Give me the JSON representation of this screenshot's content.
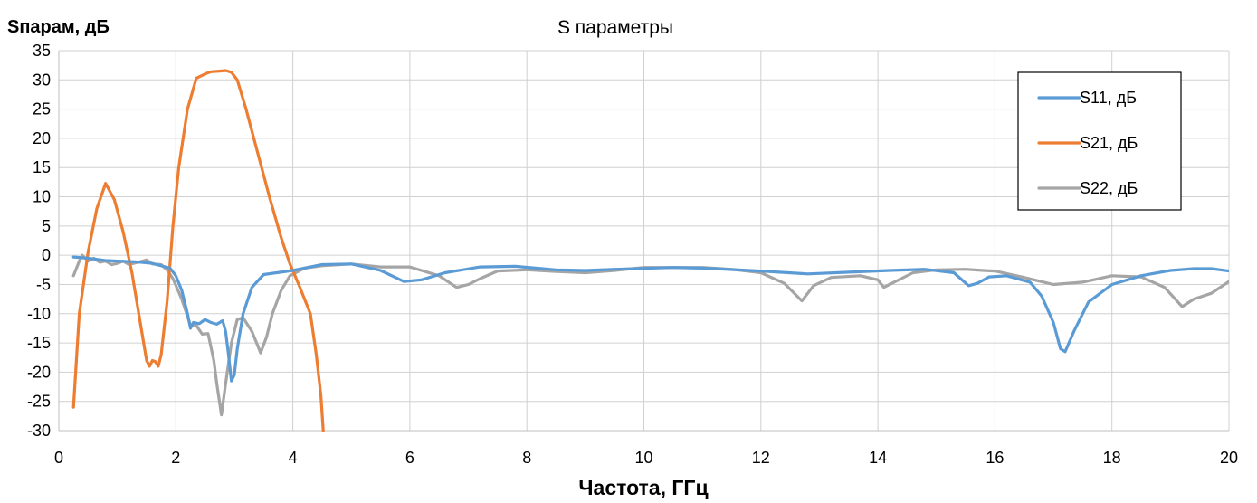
{
  "chart_data": {
    "type": "line",
    "title": "S параметры",
    "xlabel": "Частота, ГГц",
    "ylabel": "Sпарам, дБ",
    "xlim": [
      0,
      20
    ],
    "ylim": [
      -30,
      35
    ],
    "grid": true,
    "legend_position": "top-right",
    "x_ticks": [
      "0",
      "2",
      "4",
      "6",
      "8",
      "10",
      "12",
      "14",
      "16",
      "18",
      "20"
    ],
    "y_ticks": [
      "35",
      "30",
      "25",
      "20",
      "15",
      "10",
      "5",
      "0",
      "-5",
      "-10",
      "-15",
      "-20",
      "-25",
      "-30"
    ],
    "series": [
      {
        "name": "S11, дБ",
        "color": "#5b9bd5",
        "points": [
          [
            0.25,
            -0.3
          ],
          [
            0.5,
            -0.5
          ],
          [
            0.8,
            -0.9
          ],
          [
            1.0,
            -1.0
          ],
          [
            1.3,
            -1.1
          ],
          [
            1.6,
            -1.4
          ],
          [
            1.9,
            -2.2
          ],
          [
            2.0,
            -3.5
          ],
          [
            2.1,
            -6.0
          ],
          [
            2.2,
            -10.0
          ],
          [
            2.25,
            -12.5
          ],
          [
            2.3,
            -11.5
          ],
          [
            2.4,
            -11.7
          ],
          [
            2.5,
            -11.0
          ],
          [
            2.6,
            -11.5
          ],
          [
            2.7,
            -11.8
          ],
          [
            2.8,
            -11.2
          ],
          [
            2.85,
            -13.0
          ],
          [
            2.9,
            -17.0
          ],
          [
            2.95,
            -21.5
          ],
          [
            3.0,
            -20.5
          ],
          [
            3.05,
            -16.0
          ],
          [
            3.15,
            -10.0
          ],
          [
            3.3,
            -5.5
          ],
          [
            3.5,
            -3.3
          ],
          [
            4.0,
            -2.6
          ],
          [
            4.5,
            -1.6
          ],
          [
            5.0,
            -1.5
          ],
          [
            5.5,
            -2.6
          ],
          [
            5.9,
            -4.5
          ],
          [
            6.2,
            -4.2
          ],
          [
            6.6,
            -3.0
          ],
          [
            7.2,
            -2.0
          ],
          [
            7.8,
            -1.9
          ],
          [
            8.5,
            -2.5
          ],
          [
            9.0,
            -2.6
          ],
          [
            9.5,
            -2.4
          ],
          [
            10.5,
            -2.1
          ],
          [
            11.0,
            -2.2
          ],
          [
            12.0,
            -2.7
          ],
          [
            12.8,
            -3.2
          ],
          [
            13.5,
            -2.9
          ],
          [
            14.2,
            -2.6
          ],
          [
            14.8,
            -2.4
          ],
          [
            15.3,
            -3.0
          ],
          [
            15.55,
            -5.2
          ],
          [
            15.7,
            -4.8
          ],
          [
            15.9,
            -3.7
          ],
          [
            16.2,
            -3.5
          ],
          [
            16.6,
            -4.6
          ],
          [
            16.8,
            -7.0
          ],
          [
            17.0,
            -11.5
          ],
          [
            17.12,
            -16.0
          ],
          [
            17.2,
            -16.5
          ],
          [
            17.35,
            -13.0
          ],
          [
            17.6,
            -8.0
          ],
          [
            18.0,
            -5.0
          ],
          [
            18.5,
            -3.5
          ],
          [
            19.0,
            -2.6
          ],
          [
            19.4,
            -2.3
          ],
          [
            19.7,
            -2.3
          ],
          [
            20.0,
            -2.7
          ]
        ]
      },
      {
        "name": "S21, дБ",
        "color": "#ed7d31",
        "points": [
          [
            0.25,
            -26.0
          ],
          [
            0.35,
            -10.0
          ],
          [
            0.5,
            0.5
          ],
          [
            0.65,
            8.0
          ],
          [
            0.8,
            12.3
          ],
          [
            0.95,
            9.5
          ],
          [
            1.1,
            4.0
          ],
          [
            1.25,
            -3.0
          ],
          [
            1.4,
            -12.0
          ],
          [
            1.5,
            -18.0
          ],
          [
            1.55,
            -19.0
          ],
          [
            1.6,
            -18.0
          ],
          [
            1.65,
            -18.2
          ],
          [
            1.7,
            -19.0
          ],
          [
            1.75,
            -17.0
          ],
          [
            1.85,
            -8.0
          ],
          [
            1.95,
            5.0
          ],
          [
            2.05,
            15.0
          ],
          [
            2.2,
            25.0
          ],
          [
            2.35,
            30.3
          ],
          [
            2.5,
            31.0
          ],
          [
            2.6,
            31.4
          ],
          [
            2.75,
            31.5
          ],
          [
            2.85,
            31.6
          ],
          [
            2.95,
            31.3
          ],
          [
            3.05,
            30.0
          ],
          [
            3.2,
            25.0
          ],
          [
            3.4,
            17.5
          ],
          [
            3.6,
            10.0
          ],
          [
            3.8,
            3.0
          ],
          [
            3.95,
            -1.5
          ],
          [
            4.1,
            -5.0
          ],
          [
            4.3,
            -10.0
          ],
          [
            4.4,
            -17.0
          ],
          [
            4.48,
            -24.0
          ],
          [
            4.52,
            -30.0
          ]
        ]
      },
      {
        "name": "S22, дБ",
        "color": "#a5a5a5",
        "points": [
          [
            0.25,
            -3.5
          ],
          [
            0.35,
            -1.0
          ],
          [
            0.4,
            0.0
          ],
          [
            0.5,
            -1.0
          ],
          [
            0.6,
            -0.5
          ],
          [
            0.7,
            -1.2
          ],
          [
            0.8,
            -1.0
          ],
          [
            0.9,
            -1.6
          ],
          [
            1.0,
            -1.4
          ],
          [
            1.1,
            -1.0
          ],
          [
            1.2,
            -1.6
          ],
          [
            1.35,
            -1.2
          ],
          [
            1.5,
            -0.8
          ],
          [
            1.6,
            -1.5
          ],
          [
            1.75,
            -1.6
          ],
          [
            1.85,
            -2.5
          ],
          [
            1.95,
            -4.0
          ],
          [
            2.1,
            -7.5
          ],
          [
            2.25,
            -12.0
          ],
          [
            2.35,
            -12.0
          ],
          [
            2.45,
            -13.5
          ],
          [
            2.55,
            -13.4
          ],
          [
            2.65,
            -18.0
          ],
          [
            2.7,
            -22.0
          ],
          [
            2.78,
            -27.3
          ],
          [
            2.85,
            -22.0
          ],
          [
            2.95,
            -15.0
          ],
          [
            3.05,
            -11.0
          ],
          [
            3.15,
            -10.7
          ],
          [
            3.3,
            -13.0
          ],
          [
            3.45,
            -16.7
          ],
          [
            3.55,
            -14.0
          ],
          [
            3.65,
            -10.0
          ],
          [
            3.8,
            -6.0
          ],
          [
            3.95,
            -3.5
          ],
          [
            4.2,
            -2.2
          ],
          [
            4.5,
            -1.8
          ],
          [
            5.0,
            -1.5
          ],
          [
            5.5,
            -2.0
          ],
          [
            6.0,
            -2.0
          ],
          [
            6.5,
            -3.5
          ],
          [
            6.8,
            -5.5
          ],
          [
            7.0,
            -5.0
          ],
          [
            7.2,
            -4.0
          ],
          [
            7.5,
            -2.7
          ],
          [
            8.0,
            -2.5
          ],
          [
            8.5,
            -2.8
          ],
          [
            9.0,
            -3.0
          ],
          [
            9.5,
            -2.6
          ],
          [
            10.0,
            -2.1
          ],
          [
            11.0,
            -2.1
          ],
          [
            11.5,
            -2.4
          ],
          [
            12.0,
            -3.0
          ],
          [
            12.4,
            -4.8
          ],
          [
            12.7,
            -7.8
          ],
          [
            12.9,
            -5.2
          ],
          [
            13.2,
            -3.8
          ],
          [
            13.7,
            -3.5
          ],
          [
            14.0,
            -4.2
          ],
          [
            14.1,
            -5.5
          ],
          [
            14.3,
            -4.5
          ],
          [
            14.6,
            -3.0
          ],
          [
            15.0,
            -2.5
          ],
          [
            15.5,
            -2.4
          ],
          [
            15.8,
            -2.6
          ],
          [
            16.0,
            -2.7
          ],
          [
            16.5,
            -3.8
          ],
          [
            17.0,
            -5.0
          ],
          [
            17.5,
            -4.6
          ],
          [
            18.0,
            -3.5
          ],
          [
            18.5,
            -3.7
          ],
          [
            18.9,
            -5.5
          ],
          [
            19.2,
            -8.8
          ],
          [
            19.4,
            -7.5
          ],
          [
            19.7,
            -6.5
          ],
          [
            20.0,
            -4.5
          ]
        ]
      }
    ]
  }
}
